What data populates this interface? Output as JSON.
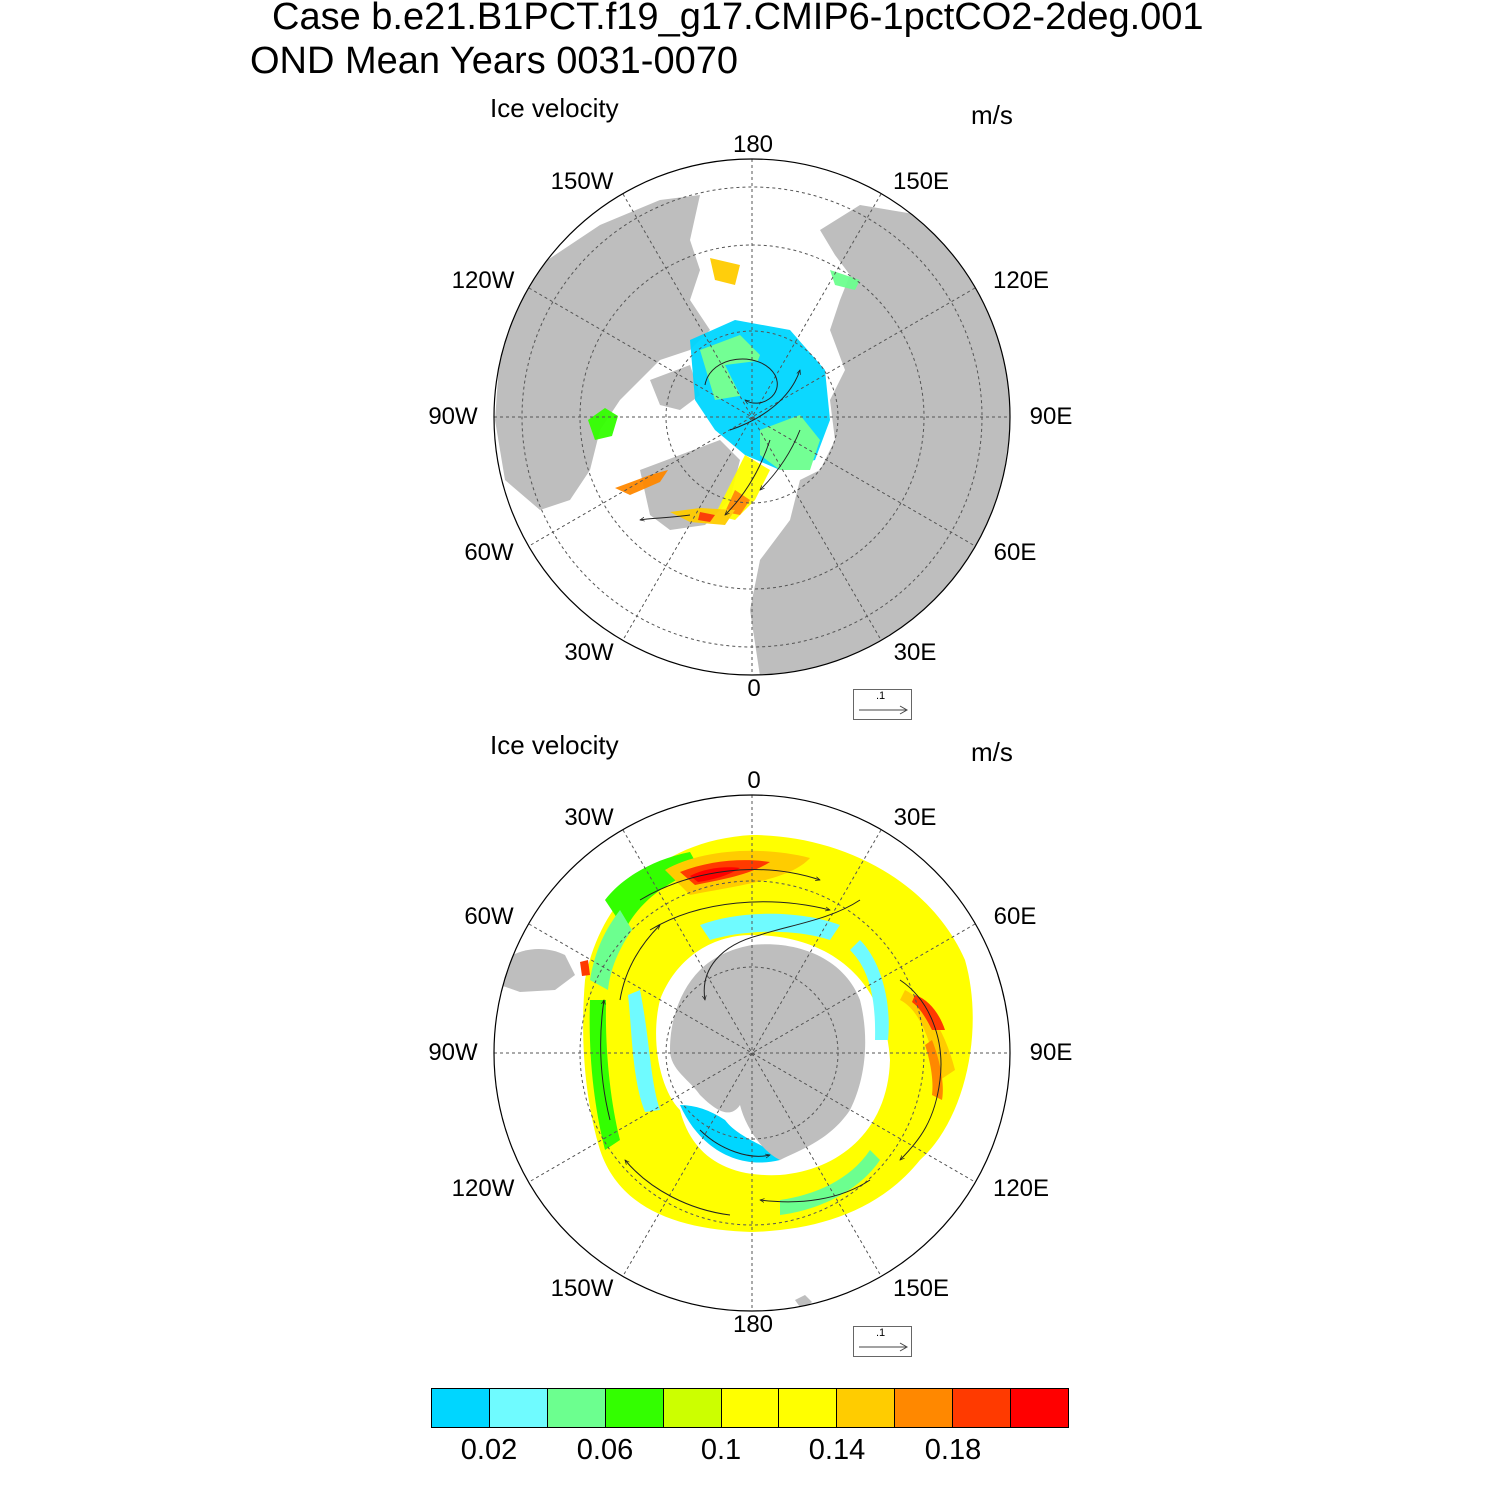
{
  "title_line1": "Case b.e21.B1PCT.f19_g17.CMIP6-1pctCO2-2deg.001",
  "title_line2": "OND Mean   Years 0031-0070",
  "panels": [
    {
      "id": "north",
      "label": "Ice velocity",
      "units": "m/s",
      "lon_labels": [
        "180",
        "150E",
        "120E",
        "90E",
        "60E",
        "30E",
        "0",
        "30W",
        "60W",
        "90W",
        "120W",
        "150W"
      ],
      "ref_vector_label": ".1"
    },
    {
      "id": "south",
      "label": "Ice velocity",
      "units": "m/s",
      "lon_labels": [
        "0",
        "30E",
        "60E",
        "90E",
        "120E",
        "150E",
        "180",
        "150W",
        "120W",
        "90W",
        "60W",
        "30W"
      ],
      "ref_vector_label": ".1"
    }
  ],
  "colorbar": {
    "colors": [
      "#00d6ff",
      "#6ffbff",
      "#6cff8f",
      "#33ff00",
      "#ccff00",
      "#ffff00",
      "#ffff00",
      "#ffcc00",
      "#ff8800",
      "#ff3a00",
      "#ff0000"
    ],
    "labels": [
      "0.02",
      "0.06",
      "0.1",
      "0.14",
      "0.18"
    ]
  },
  "colors": {
    "land": "#bebebe",
    "grid": "#555555"
  }
}
